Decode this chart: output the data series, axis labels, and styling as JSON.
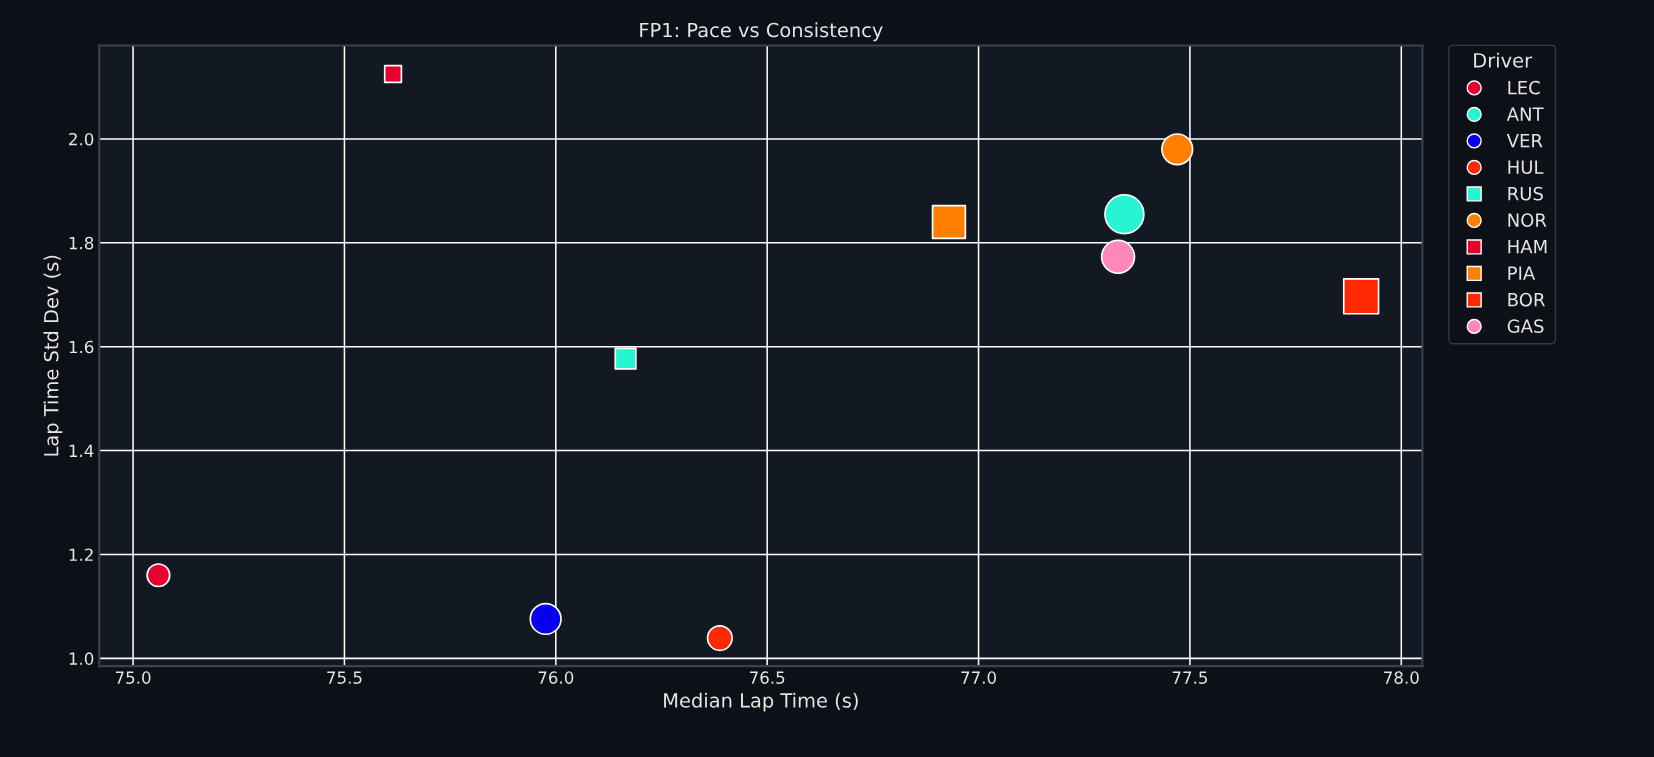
{
  "chart_data": {
    "type": "bubble",
    "title": "FP1: Pace vs Consistency",
    "xlabel": "Median Lap Time (s)",
    "ylabel": "Lap Time Std Dev (s)",
    "legend_title": "Driver",
    "legend": "top right",
    "grid": true,
    "xlim": [
      74.92,
      78.05
    ],
    "xticks": [
      {
        "value": 75,
        "label": "75.0"
      },
      75.5,
      {
        "value": 76,
        "label": "76.0"
      },
      76.5,
      {
        "value": 77,
        "label": "77.0"
      },
      77.5,
      {
        "value": 78,
        "label": "78.0"
      }
    ],
    "ylim": [
      0.985,
      2.18
    ],
    "yticks": [
      {
        "value": 1,
        "label": "1.0"
      },
      1.2,
      1.4,
      1.6,
      1.8,
      {
        "value": 2,
        "label": "2.0"
      }
    ],
    "series": [
      {
        "name": "LEC",
        "color": "#e8002d",
        "marker": "circle",
        "x": [
          75.06
        ],
        "values": [
          1.16
        ],
        "sizes": [
          0.33
        ]
      },
      {
        "name": "ANT",
        "color": "#27f4d2",
        "marker": "circle",
        "x": [
          77.345
        ],
        "values": [
          1.855
        ],
        "sizes": [
          0.98
        ]
      },
      {
        "name": "VER",
        "color": "#0600ef",
        "marker": "circle",
        "x": [
          75.976
        ],
        "values": [
          1.076
        ],
        "sizes": [
          0.61
        ]
      },
      {
        "name": "HUL",
        "color": "#ff2800",
        "marker": "circle",
        "x": [
          76.388
        ],
        "values": [
          1.039
        ],
        "sizes": [
          0.39
        ]
      },
      {
        "name": "RUS",
        "color": "#27f4d2",
        "marker": "square",
        "x": [
          76.165
        ],
        "values": [
          1.577
        ],
        "sizes": [
          0.35
        ]
      },
      {
        "name": "NOR",
        "color": "#ff8000",
        "marker": "circle",
        "x": [
          77.47
        ],
        "values": [
          1.98
        ],
        "sizes": [
          0.61
        ]
      },
      {
        "name": "HAM",
        "color": "#e8002d",
        "marker": "square",
        "x": [
          75.615
        ],
        "values": [
          2.125
        ],
        "sizes": [
          0.23
        ]
      },
      {
        "name": "PIA",
        "color": "#ff8000",
        "marker": "square",
        "x": [
          76.93
        ],
        "values": [
          1.84
        ],
        "sizes": [
          0.89
        ]
      },
      {
        "name": "BOR",
        "color": "#ff2800",
        "marker": "square",
        "x": [
          77.905
        ],
        "values": [
          1.697
        ],
        "sizes": [
          1
        ]
      },
      {
        "name": "GAS",
        "color": "#ff87bc",
        "marker": "circle",
        "x": [
          77.33
        ],
        "values": [
          1.773
        ],
        "sizes": [
          0.7
        ]
      }
    ]
  }
}
